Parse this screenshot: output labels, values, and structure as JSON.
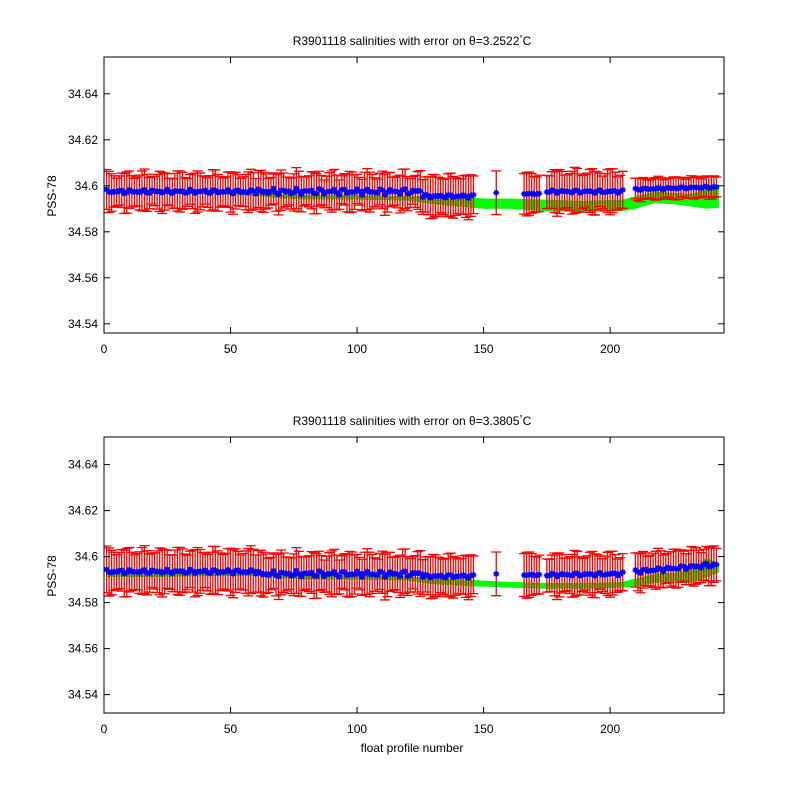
{
  "chart_data": [
    {
      "type": "scatter",
      "title": "R3901118 salinities with error on θ=3.2522",
      "title_degree": "°",
      "title_unit": "C",
      "xlabel": "",
      "ylabel": "PSS-78",
      "xlim": [
        0,
        245
      ],
      "ylim": [
        34.536,
        34.656
      ],
      "xticks": [
        0,
        50,
        100,
        150,
        200
      ],
      "yticks": [
        34.54,
        34.56,
        34.58,
        34.6,
        34.62,
        34.64
      ],
      "ytick_labels": [
        "34.54",
        "34.56",
        "34.58",
        "34.6",
        "34.62",
        "34.64"
      ],
      "grid": false,
      "colors": {
        "points": "#0000ff",
        "errorbars": "#ff0000",
        "band": "#00ff00"
      },
      "band": {
        "x": [
          1,
          20,
          40,
          60,
          70,
          80,
          100,
          120,
          130,
          145,
          150,
          160,
          175,
          190,
          205,
          210,
          218,
          225,
          232,
          238,
          243
        ],
        "lower": [
          34.5965,
          34.5965,
          34.5965,
          34.5955,
          34.5945,
          34.594,
          34.594,
          34.5935,
          34.592,
          34.5905,
          34.59,
          34.59,
          34.589,
          34.5885,
          34.589,
          34.59,
          34.5925,
          34.592,
          34.591,
          34.59,
          34.5905
        ],
        "upper": [
          34.5985,
          34.5985,
          34.5985,
          34.5975,
          34.5965,
          34.596,
          34.596,
          34.5955,
          34.5955,
          34.595,
          34.5945,
          34.5945,
          34.594,
          34.5935,
          34.594,
          34.5955,
          34.5975,
          34.597,
          34.5965,
          34.5985,
          34.6
        ]
      },
      "segments": [
        {
          "x0": 1,
          "x1": 60,
          "y0": 34.5975,
          "y1": 34.5975,
          "amp": 0.001,
          "err": 0.0075,
          "errAmp": 0.0015
        },
        {
          "x0": 61,
          "x1": 125,
          "y0": 34.5975,
          "y1": 34.5975,
          "amp": 0.0015,
          "err": 0.0075,
          "errAmp": 0.0015
        },
        {
          "x0": 126,
          "x1": 146,
          "y0": 34.5955,
          "y1": 34.5955,
          "amp": 0.0008,
          "err": 0.0085,
          "errAmp": 0.001
        },
        {
          "x0": 155,
          "x1": 155,
          "y0": 34.597,
          "y1": 34.597,
          "amp": 0,
          "err": 0.0095,
          "errAmp": 0
        },
        {
          "x0": 166,
          "x1": 172,
          "y0": 34.5965,
          "y1": 34.5965,
          "amp": 0.0003,
          "err": 0.0085,
          "errAmp": 0.001
        },
        {
          "x0": 175,
          "x1": 205,
          "y0": 34.5975,
          "y1": 34.5975,
          "amp": 0.0008,
          "err": 0.0085,
          "errAmp": 0.0015
        },
        {
          "x0": 210,
          "x1": 242,
          "y0": 34.5985,
          "y1": 34.5995,
          "amp": 0.0005,
          "err": 0.0045,
          "errAmp": 0.0005
        }
      ]
    },
    {
      "type": "scatter",
      "title": "R3901118 salinities with error on θ=3.3805",
      "title_degree": "°",
      "title_unit": "C",
      "xlabel": "float profile number",
      "ylabel": "PSS-78",
      "xlim": [
        0,
        245
      ],
      "ylim": [
        34.532,
        34.652
      ],
      "xticks": [
        0,
        50,
        100,
        150,
        200
      ],
      "yticks": [
        34.54,
        34.56,
        34.58,
        34.6,
        34.62,
        34.64
      ],
      "ytick_labels": [
        "34.54",
        "34.56",
        "34.58",
        "34.6",
        "34.62",
        "34.64"
      ],
      "grid": false,
      "colors": {
        "points": "#0000ff",
        "errorbars": "#ff0000",
        "band": "#00ff00"
      },
      "band": {
        "x": [
          1,
          20,
          40,
          60,
          70,
          80,
          100,
          120,
          130,
          145,
          150,
          160,
          175,
          190,
          205,
          210,
          218,
          225,
          232,
          238,
          243
        ],
        "lower": [
          34.591,
          34.591,
          34.5915,
          34.5915,
          34.5905,
          34.59,
          34.59,
          34.5895,
          34.588,
          34.587,
          34.587,
          34.5865,
          34.586,
          34.586,
          34.5865,
          34.587,
          34.5885,
          34.589,
          34.5885,
          34.591,
          34.593
        ],
        "upper": [
          34.593,
          34.593,
          34.5935,
          34.5935,
          34.5925,
          34.592,
          34.592,
          34.5915,
          34.5905,
          34.59,
          34.5895,
          34.589,
          34.5885,
          34.5885,
          34.589,
          34.5905,
          34.5925,
          34.593,
          34.594,
          34.5995,
          34.597
        ]
      },
      "segments": [
        {
          "x0": 1,
          "x1": 60,
          "y0": 34.5935,
          "y1": 34.5935,
          "amp": 0.001,
          "err": 0.009,
          "errAmp": 0.0015
        },
        {
          "x0": 61,
          "x1": 125,
          "y0": 34.5925,
          "y1": 34.5925,
          "amp": 0.0015,
          "err": 0.0085,
          "errAmp": 0.0015
        },
        {
          "x0": 126,
          "x1": 146,
          "y0": 34.5915,
          "y1": 34.5915,
          "amp": 0.0008,
          "err": 0.0085,
          "errAmp": 0.001
        },
        {
          "x0": 155,
          "x1": 155,
          "y0": 34.5925,
          "y1": 34.5925,
          "amp": 0,
          "err": 0.0095,
          "errAmp": 0
        },
        {
          "x0": 166,
          "x1": 172,
          "y0": 34.592,
          "y1": 34.592,
          "amp": 0.0003,
          "err": 0.009,
          "errAmp": 0.001
        },
        {
          "x0": 175,
          "x1": 205,
          "y0": 34.592,
          "y1": 34.5925,
          "amp": 0.0008,
          "err": 0.0085,
          "errAmp": 0.0015
        },
        {
          "x0": 210,
          "x1": 242,
          "y0": 34.5935,
          "y1": 34.5965,
          "amp": 0.001,
          "err": 0.0075,
          "errAmp": 0.001
        }
      ]
    }
  ]
}
